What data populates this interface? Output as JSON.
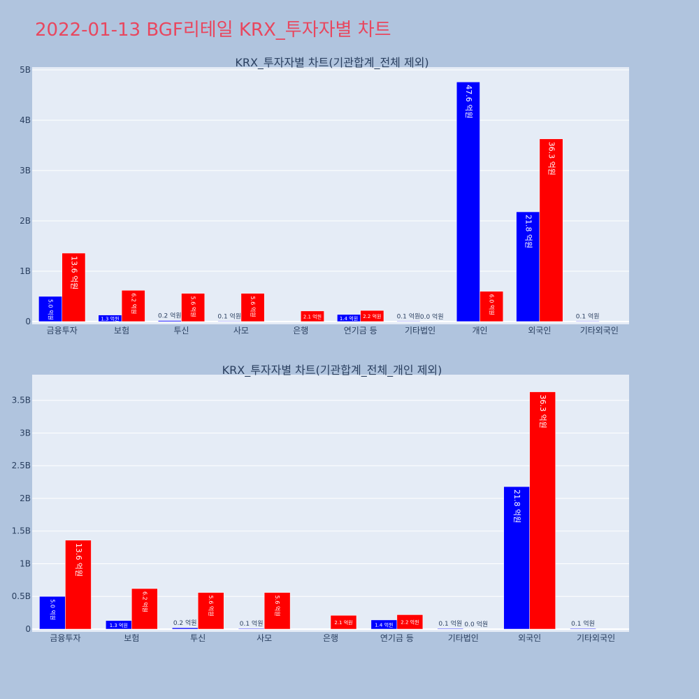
{
  "title": "2022-01-13 BGF리테일 KRX_투자자별 차트",
  "colors": {
    "series_a": "#0000ff",
    "series_b": "#ff0000",
    "plot_bg": "#e5ecf6",
    "page_bg": "#b0c4de",
    "title": "#e8475f"
  },
  "chart_data": [
    {
      "type": "bar",
      "title": "KRX_투자자별 차트(기관합계_전체 제외)",
      "categories": [
        "금융투자",
        "보험",
        "투신",
        "사모",
        "은행",
        "연기금 등",
        "기타법인",
        "개인",
        "외국인",
        "기타외국인"
      ],
      "series": [
        {
          "values": [
            0.5,
            0.13,
            0.02,
            0.01,
            0.0,
            0.14,
            0.01,
            4.76,
            2.18,
            0.01
          ],
          "labels": [
            "5.0 억원",
            "1.3 억원",
            "0.2 억원",
            "0.1 억원",
            "",
            "1.4 억원",
            "0.1 억원",
            "47.6 억원",
            "21.8 억원",
            "0.1 억원"
          ]
        },
        {
          "values": [
            1.36,
            0.62,
            0.56,
            0.56,
            0.21,
            0.22,
            0.0,
            0.6,
            3.63,
            0.0
          ],
          "labels": [
            "13.6 억원",
            "6.2 억원",
            "5.6 억원",
            "5.6 억원",
            "2.1 억원",
            "2.2 억원",
            "0.0 억원",
            "6.0 억원",
            "36.3 억원",
            ""
          ]
        }
      ],
      "ylim": [
        0,
        5
      ],
      "yticks": [
        0,
        1,
        2,
        3,
        4,
        5
      ],
      "ytick_labels": [
        "0",
        "1B",
        "2B",
        "3B",
        "4B",
        "5B"
      ],
      "grid": true,
      "legend": "none"
    },
    {
      "type": "bar",
      "title": "KRX_투자자별 차트(기관합계_전체_개인 제외)",
      "categories": [
        "금융투자",
        "보험",
        "투신",
        "사모",
        "은행",
        "연기금 등",
        "기타법인",
        "외국인",
        "기타외국인"
      ],
      "series": [
        {
          "values": [
            0.5,
            0.13,
            0.02,
            0.01,
            0.0,
            0.14,
            0.01,
            2.18,
            0.01
          ],
          "labels": [
            "5.0 억원",
            "1.3 억원",
            "0.2 억원",
            "0.1 억원",
            "",
            "1.4 억원",
            "0.1 억원",
            "21.8 억원",
            "0.1 억원"
          ]
        },
        {
          "values": [
            1.36,
            0.62,
            0.56,
            0.56,
            0.21,
            0.22,
            0.0,
            3.63,
            0.0
          ],
          "labels": [
            "13.6 억원",
            "6.2 억원",
            "5.6 억원",
            "5.6 억원",
            "2.1 억원",
            "2.2 억원",
            "0.0 억원",
            "36.3 억원",
            ""
          ]
        }
      ],
      "ylim": [
        0,
        3.85
      ],
      "yticks": [
        0,
        0.5,
        1,
        1.5,
        2,
        2.5,
        3,
        3.5
      ],
      "ytick_labels": [
        "0",
        "0.5B",
        "1B",
        "1.5B",
        "2B",
        "2.5B",
        "3B",
        "3.5B"
      ],
      "grid": true,
      "legend": "none"
    }
  ]
}
